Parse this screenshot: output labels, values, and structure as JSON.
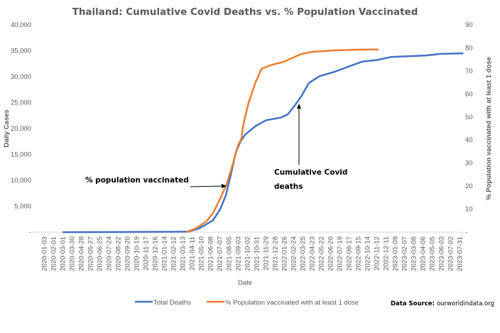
{
  "chart_data": {
    "type": "line",
    "title": "Thailand: Cumulative Covid Deaths vs. % Population Vaccinated",
    "xlabel": "Date",
    "ylabel_left": "Daily Cases",
    "ylabel_right": "% Population vaccinated with at least 1 dose",
    "ylim_left": [
      0,
      40000
    ],
    "ylim_right": [
      0,
      90
    ],
    "yticks_left": [
      "-",
      "5,000",
      "10,000",
      "15,000",
      "20,000",
      "25,000",
      "30,000",
      "35,000",
      "40,000"
    ],
    "yticks_right": [
      "-",
      "10",
      "20",
      "30",
      "40",
      "50",
      "60",
      "70",
      "80",
      "90"
    ],
    "x_ticks": [
      "2020-01-03",
      "2020-02-01",
      "2020-03-01",
      "2020-03-30",
      "2020-04-28",
      "2020-05-27",
      "2020-06-25",
      "2020-07-24",
      "2020-08-22",
      "2020-09-20",
      "2020-10-19",
      "2020-11-17",
      "2020-12-16",
      "2021-01-14",
      "2021-02-12",
      "2021-03-13",
      "2021-04-11",
      "2021-05-10",
      "2021-06-08",
      "2021-07-07",
      "2021-08-05",
      "2021-09-03",
      "2021-10-02",
      "2021-10-31",
      "2021-11-29",
      "2021-12-28",
      "2022-01-26",
      "2022-02-24",
      "2022-03-25",
      "2022-04-23",
      "2022-05-22",
      "2022-06-20",
      "2022-07-19",
      "2022-08-17",
      "2022-09-15",
      "2022-10-14",
      "2022-11-12",
      "2022-12-11",
      "2023-01-09",
      "2023-02-07",
      "2023-03-08",
      "2023-04-06",
      "2023-05-05",
      "2023-06-03",
      "2023-07-02",
      "2023-07-31"
    ],
    "x_ticks_note": "",
    "grid": false,
    "legend_position": "bottom",
    "series": [
      {
        "name": "Total Deaths",
        "axis": "left",
        "color": "#4472C4",
        "x": [
          "2020-03-01",
          "2021-03-31",
          "2021-05-03",
          "2021-05-26",
          "2021-06-17",
          "2021-07-09",
          "2021-07-27",
          "2021-08-12",
          "2021-08-27",
          "2021-09-10",
          "2021-09-25",
          "2021-10-29",
          "2021-12-01",
          "2022-01-15",
          "2022-02-06",
          "2022-02-28",
          "2022-03-23",
          "2022-04-14",
          "2022-05-17",
          "2022-07-01",
          "2022-08-15",
          "2022-09-28",
          "2022-11-12",
          "2022-12-27",
          "2023-04-17",
          "2023-06-01",
          "2023-08-12"
        ],
        "y": [
          0,
          94,
          700,
          1500,
          2300,
          4400,
          7100,
          11200,
          15300,
          17400,
          18800,
          20500,
          21600,
          22100,
          22700,
          24400,
          26400,
          28800,
          30100,
          30900,
          31900,
          32900,
          33200,
          33800,
          34100,
          34400,
          34500
        ]
      },
      {
        "name": "% Population vaccinated with at least 1 dose",
        "axis": "right",
        "color": "#ED7D31",
        "x": [
          "2021-03-24",
          "2021-04-22",
          "2021-05-26",
          "2021-06-17",
          "2021-07-09",
          "2021-07-27",
          "2021-08-12",
          "2021-09-03",
          "2021-09-14",
          "2021-09-19",
          "2021-10-06",
          "2021-10-29",
          "2021-11-16",
          "2021-12-12",
          "2022-01-26",
          "2022-02-28",
          "2022-03-23",
          "2022-04-25",
          "2022-07-01",
          "2022-09-06",
          "2022-11-19"
        ],
        "y": [
          0,
          1.5,
          4.6,
          8.3,
          14.5,
          20,
          26.8,
          37.6,
          40.7,
          46,
          56,
          65.3,
          70.9,
          72.4,
          74,
          76.1,
          77.4,
          78.3,
          78.9,
          79.2,
          79.3
        ]
      }
    ],
    "annotations": [
      {
        "text": "% population vaccinated",
        "points_to": "% Population vaccinated with at least 1 dose"
      },
      {
        "text_lines": [
          "Cumulative Covid",
          "deaths"
        ],
        "points_to": "Total Deaths"
      }
    ]
  },
  "source": {
    "label": "Data Source:",
    "value": "ourworldindata.org"
  }
}
